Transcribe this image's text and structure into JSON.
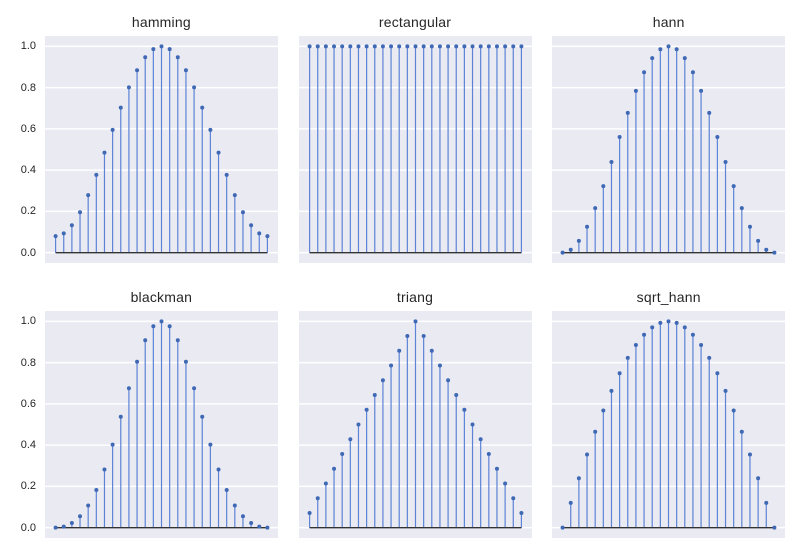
{
  "figure": {
    "background": "#ffffff",
    "axes_background": "#eaeaf2",
    "grid_color": "#ffffff",
    "stem_color": "#5c83d6",
    "marker_color": "#3f69b5",
    "baseline_color": "#333333",
    "text_color": "#262626"
  },
  "chart_data": [
    {
      "type": "stem",
      "title": "hamming",
      "num_points": 27,
      "values": [
        0.08,
        0.0934,
        0.1327,
        0.1957,
        0.2787,
        0.3769,
        0.4846,
        0.5954,
        0.7031,
        0.8013,
        0.8843,
        0.9473,
        0.9866,
        1.0,
        0.9866,
        0.9473,
        0.8843,
        0.8013,
        0.7031,
        0.5954,
        0.4846,
        0.3769,
        0.2787,
        0.1957,
        0.1327,
        0.0934,
        0.08
      ],
      "xlim": [
        -1.3,
        27.3
      ],
      "ylim": [
        -0.05,
        1.05
      ],
      "yticks": [
        0.0,
        0.2,
        0.4,
        0.6,
        0.8,
        1.0
      ],
      "ytick_labels": [
        "0.0",
        "0.2",
        "0.4",
        "0.6",
        "0.8",
        "1.0"
      ],
      "show_ytick_labels": true,
      "grid": "horizontal"
    },
    {
      "type": "stem",
      "title": "rectangular",
      "num_points": 27,
      "values": [
        1.0,
        1.0,
        1.0,
        1.0,
        1.0,
        1.0,
        1.0,
        1.0,
        1.0,
        1.0,
        1.0,
        1.0,
        1.0,
        1.0,
        1.0,
        1.0,
        1.0,
        1.0,
        1.0,
        1.0,
        1.0,
        1.0,
        1.0,
        1.0,
        1.0,
        1.0,
        1.0
      ],
      "xlim": [
        -1.3,
        27.3
      ],
      "ylim": [
        -0.05,
        1.05
      ],
      "yticks": [
        0.0,
        0.2,
        0.4,
        0.6,
        0.8,
        1.0
      ],
      "ytick_labels": [
        "0.0",
        "0.2",
        "0.4",
        "0.6",
        "0.8",
        "1.0"
      ],
      "show_ytick_labels": false,
      "grid": "horizontal"
    },
    {
      "type": "stem",
      "title": "hann",
      "num_points": 27,
      "values": [
        0.0,
        0.0145,
        0.0573,
        0.1257,
        0.216,
        0.3227,
        0.4397,
        0.5603,
        0.6773,
        0.784,
        0.8743,
        0.9427,
        0.9855,
        1.0,
        0.9855,
        0.9427,
        0.8743,
        0.784,
        0.6773,
        0.5603,
        0.4397,
        0.3227,
        0.216,
        0.1257,
        0.0573,
        0.0145,
        0.0
      ],
      "xlim": [
        -1.3,
        27.3
      ],
      "ylim": [
        -0.05,
        1.05
      ],
      "yticks": [
        0.0,
        0.2,
        0.4,
        0.6,
        0.8,
        1.0
      ],
      "ytick_labels": [
        "0.0",
        "0.2",
        "0.4",
        "0.6",
        "0.8",
        "1.0"
      ],
      "show_ytick_labels": false,
      "grid": "horizontal"
    },
    {
      "type": "stem",
      "title": "blackman",
      "num_points": 27,
      "values": [
        0.0,
        0.0054,
        0.0227,
        0.0554,
        0.1076,
        0.1828,
        0.282,
        0.4026,
        0.5374,
        0.6757,
        0.8039,
        0.9082,
        0.9763,
        1.0,
        0.9763,
        0.9082,
        0.8039,
        0.6757,
        0.5374,
        0.4026,
        0.282,
        0.1828,
        0.1076,
        0.0554,
        0.0227,
        0.0054,
        0.0
      ],
      "xlim": [
        -1.3,
        27.3
      ],
      "ylim": [
        -0.05,
        1.05
      ],
      "yticks": [
        0.0,
        0.2,
        0.4,
        0.6,
        0.8,
        1.0
      ],
      "ytick_labels": [
        "0.0",
        "0.2",
        "0.4",
        "0.6",
        "0.8",
        "1.0"
      ],
      "show_ytick_labels": true,
      "grid": "horizontal"
    },
    {
      "type": "stem",
      "title": "triang",
      "num_points": 27,
      "values": [
        0.0714,
        0.1429,
        0.2143,
        0.2857,
        0.3571,
        0.4286,
        0.5,
        0.5714,
        0.6429,
        0.7143,
        0.7857,
        0.8571,
        0.9286,
        1.0,
        0.9286,
        0.8571,
        0.7857,
        0.7143,
        0.6429,
        0.5714,
        0.5,
        0.4286,
        0.3571,
        0.2857,
        0.2143,
        0.1429,
        0.0714
      ],
      "xlim": [
        -1.3,
        27.3
      ],
      "ylim": [
        -0.05,
        1.05
      ],
      "yticks": [
        0.0,
        0.2,
        0.4,
        0.6,
        0.8,
        1.0
      ],
      "ytick_labels": [
        "0.0",
        "0.2",
        "0.4",
        "0.6",
        "0.8",
        "1.0"
      ],
      "show_ytick_labels": false,
      "grid": "horizontal"
    },
    {
      "type": "stem",
      "title": "sqrt_hann",
      "num_points": 27,
      "values": [
        0.0,
        0.1205,
        0.2393,
        0.3546,
        0.4647,
        0.5681,
        0.6631,
        0.7485,
        0.823,
        0.8855,
        0.935,
        0.9709,
        0.9927,
        1.0,
        0.9927,
        0.9709,
        0.935,
        0.8855,
        0.823,
        0.7485,
        0.6631,
        0.5681,
        0.4647,
        0.3546,
        0.2393,
        0.1205,
        0.0
      ],
      "xlim": [
        -1.3,
        27.3
      ],
      "ylim": [
        -0.05,
        1.05
      ],
      "yticks": [
        0.0,
        0.2,
        0.4,
        0.6,
        0.8,
        1.0
      ],
      "ytick_labels": [
        "0.0",
        "0.2",
        "0.4",
        "0.6",
        "0.8",
        "1.0"
      ],
      "show_ytick_labels": false,
      "grid": "horizontal"
    }
  ]
}
